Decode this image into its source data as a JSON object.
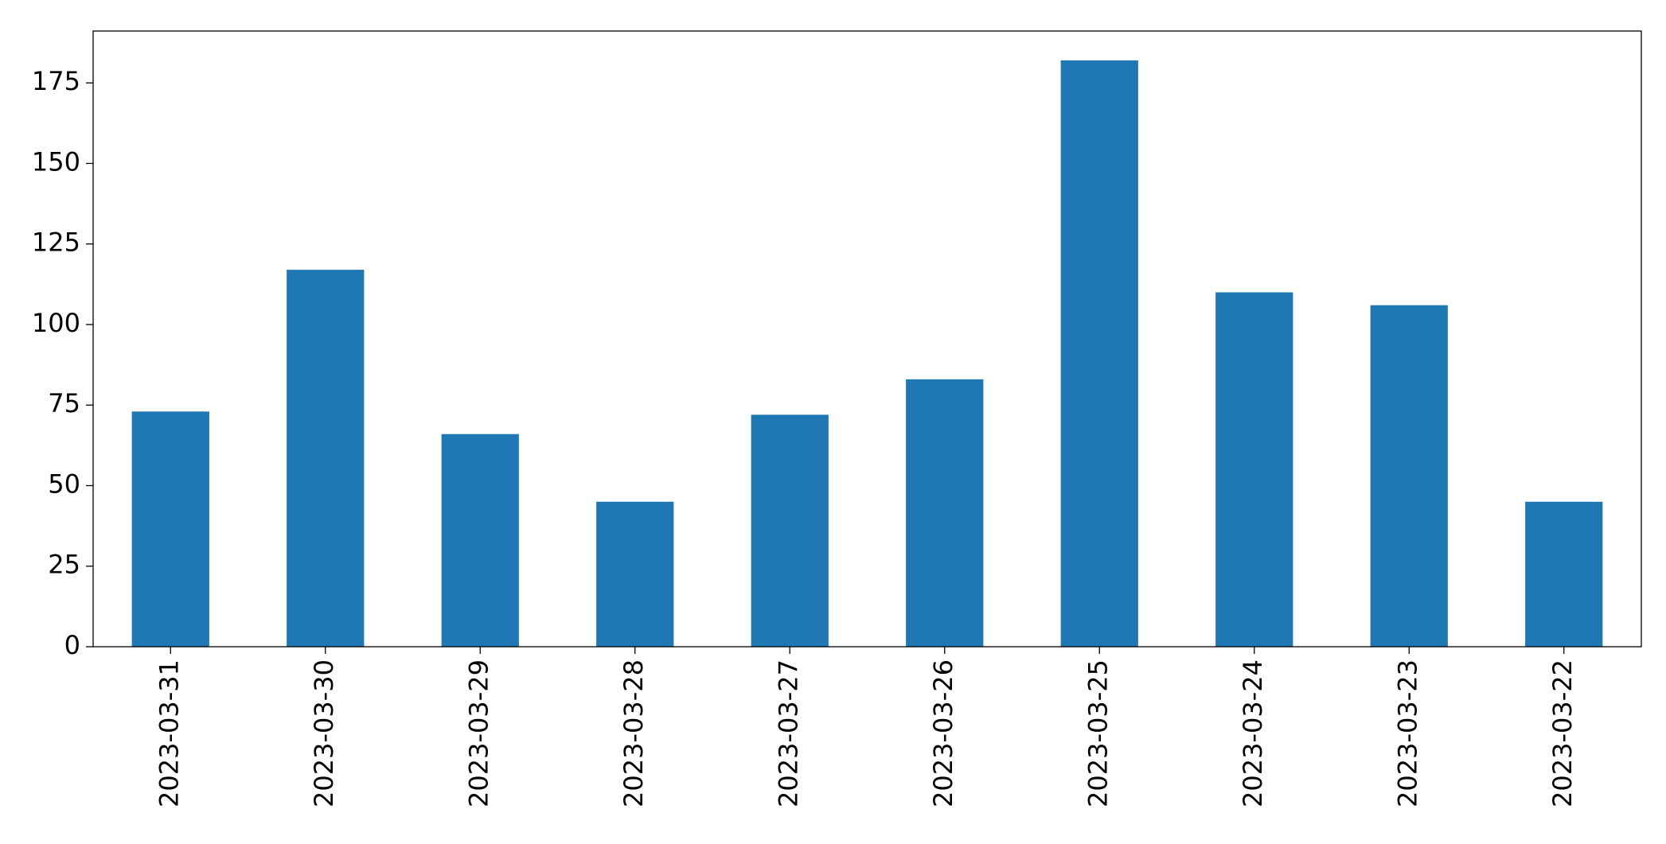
{
  "chart_data": {
    "type": "bar",
    "categories": [
      "2023-03-31",
      "2023-03-30",
      "2023-03-29",
      "2023-03-28",
      "2023-03-27",
      "2023-03-26",
      "2023-03-25",
      "2023-03-24",
      "2023-03-23",
      "2023-03-22"
    ],
    "values": [
      73,
      117,
      66,
      45,
      72,
      83,
      182,
      110,
      106,
      45
    ],
    "color": "#1f77b4",
    "ylim": [
      0,
      191.1
    ],
    "yticks": [
      0,
      25,
      50,
      75,
      100,
      125,
      150,
      175
    ],
    "grid": false
  }
}
